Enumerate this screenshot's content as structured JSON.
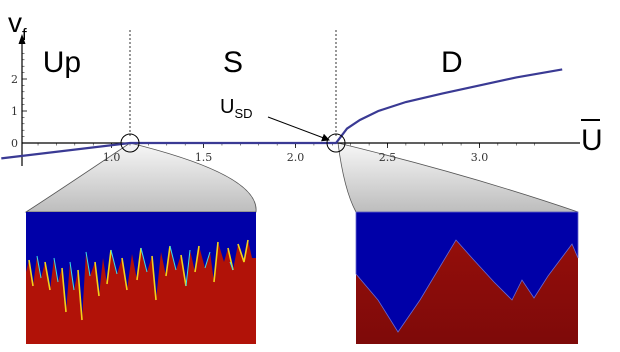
{
  "chart_data": {
    "type": "line",
    "title": "",
    "xlabel": {
      "main": "U",
      "overbar": true
    },
    "ylabel": {
      "main": "v",
      "sub": "f"
    },
    "xlim": [
      0.4,
      3.45
    ],
    "ylim": [
      -0.55,
      2.9
    ],
    "x_ticks": [
      1.0,
      1.5,
      2.0,
      2.5,
      3.0
    ],
    "x_tick_labels": [
      "1.0",
      "1.5",
      "2.0",
      "2.5",
      "3.0"
    ],
    "y_ticks": [
      0,
      1,
      2
    ],
    "y_tick_labels": [
      "0",
      "1",
      "2"
    ],
    "grid": false,
    "series": [
      {
        "color": "#3a3a94",
        "points": [
          [
            0.4,
            -0.48
          ],
          [
            1.1,
            0.0
          ],
          [
            2.22,
            0.0
          ],
          [
            2.24,
            0.15
          ],
          [
            2.28,
            0.45
          ],
          [
            2.35,
            0.72
          ],
          [
            2.45,
            1.0
          ],
          [
            2.6,
            1.28
          ],
          [
            2.8,
            1.55
          ],
          [
            3.0,
            1.8
          ],
          [
            3.2,
            2.05
          ],
          [
            3.45,
            2.3
          ]
        ]
      }
    ],
    "regions": [
      {
        "label": "Up",
        "x": 0.73
      },
      {
        "label": "S",
        "x": 1.66
      },
      {
        "label": "D",
        "x": 2.85
      }
    ],
    "vertical_lines": [
      1.1,
      2.22
    ],
    "circled_points": [
      [
        1.1,
        0
      ],
      [
        2.22,
        0
      ]
    ],
    "annotations": [
      {
        "text": "U",
        "sub": "SD",
        "target_x": 2.22,
        "target_y": 0
      }
    ],
    "insets": [
      {
        "name": "S-regime-field",
        "source_x": 1.1,
        "colors": [
          "#0000a8",
          "#b0100a"
        ]
      },
      {
        "name": "D-regime-field",
        "source_x": 2.22,
        "colors": [
          "#0000a8",
          "#a8100a"
        ]
      }
    ]
  },
  "colors": {
    "curve": "#3a3a94",
    "inset_blue": "#0000a8",
    "inset_red": "#b01208",
    "inset_dark_red": "#8e0c0a",
    "cone": "#d6d6d6"
  }
}
